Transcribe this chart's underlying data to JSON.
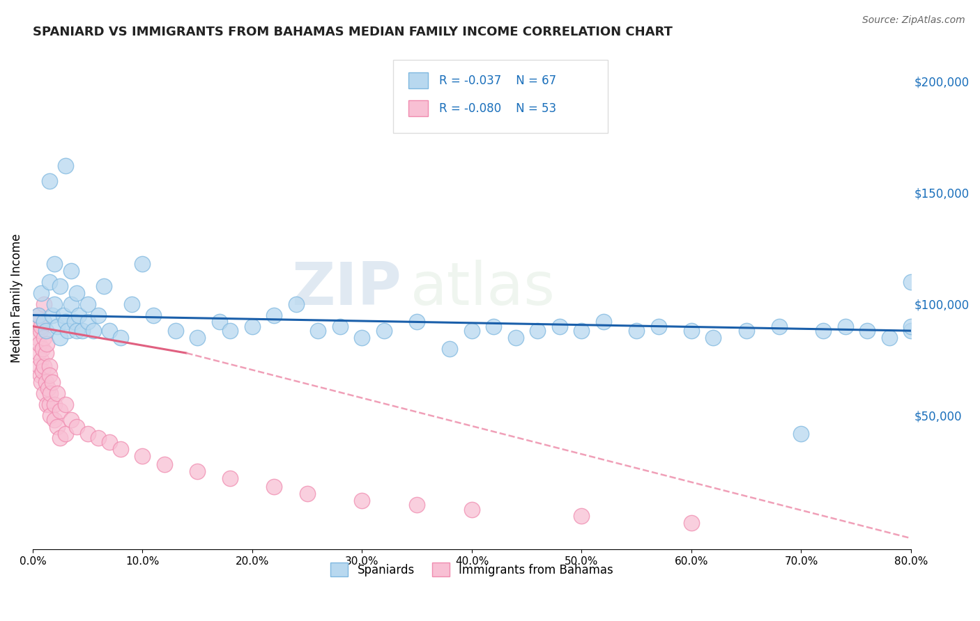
{
  "title": "SPANIARD VS IMMIGRANTS FROM BAHAMAS MEDIAN FAMILY INCOME CORRELATION CHART",
  "source": "Source: ZipAtlas.com",
  "ylabel": "Median Family Income",
  "watermark_zip": "ZIP",
  "watermark_atlas": "atlas",
  "legend_r1": "R = -0.037",
  "legend_n1": "N = 67",
  "legend_r2": "R = -0.080",
  "legend_n2": "N = 53",
  "series1_label": "Spaniards",
  "series2_label": "Immigrants from Bahamas",
  "series1_color": "#7fb8e0",
  "series1_fill": "#b8d8ef",
  "series2_color": "#f08cb0",
  "series2_fill": "#f8c0d4",
  "trend1_color": "#1a5faa",
  "trend2_solid_color": "#e06080",
  "trend2_dash_color": "#f0a0b8",
  "background": "#ffffff",
  "grid_color": "#cccccc",
  "xmin": 0.0,
  "xmax": 0.8,
  "ymin": -10000,
  "ymax": 215000,
  "yticks": [
    0,
    50000,
    100000,
    150000,
    200000
  ],
  "ytick_labels": [
    "",
    "$50,000",
    "$100,000",
    "$150,000",
    "$200,000"
  ],
  "spaniards_x": [
    0.005,
    0.008,
    0.01,
    0.012,
    0.015,
    0.015,
    0.018,
    0.02,
    0.02,
    0.022,
    0.025,
    0.025,
    0.028,
    0.03,
    0.03,
    0.032,
    0.035,
    0.035,
    0.038,
    0.04,
    0.04,
    0.042,
    0.045,
    0.05,
    0.05,
    0.055,
    0.06,
    0.065,
    0.07,
    0.08,
    0.09,
    0.1,
    0.11,
    0.13,
    0.15,
    0.17,
    0.18,
    0.2,
    0.22,
    0.24,
    0.26,
    0.28,
    0.3,
    0.32,
    0.35,
    0.38,
    0.4,
    0.42,
    0.44,
    0.46,
    0.48,
    0.5,
    0.52,
    0.55,
    0.57,
    0.6,
    0.62,
    0.65,
    0.68,
    0.7,
    0.72,
    0.74,
    0.76,
    0.78,
    0.8,
    0.8,
    0.8
  ],
  "spaniards_y": [
    95000,
    105000,
    92000,
    88000,
    110000,
    155000,
    95000,
    100000,
    118000,
    90000,
    108000,
    85000,
    95000,
    92000,
    162000,
    88000,
    100000,
    115000,
    92000,
    88000,
    105000,
    95000,
    88000,
    92000,
    100000,
    88000,
    95000,
    108000,
    88000,
    85000,
    100000,
    118000,
    95000,
    88000,
    85000,
    92000,
    88000,
    90000,
    95000,
    100000,
    88000,
    90000,
    85000,
    88000,
    92000,
    80000,
    88000,
    90000,
    85000,
    88000,
    90000,
    88000,
    92000,
    88000,
    90000,
    88000,
    85000,
    88000,
    90000,
    42000,
    88000,
    90000,
    88000,
    85000,
    88000,
    90000,
    110000
  ],
  "bahamas_x": [
    0.003,
    0.004,
    0.005,
    0.005,
    0.006,
    0.006,
    0.007,
    0.007,
    0.008,
    0.008,
    0.008,
    0.009,
    0.009,
    0.01,
    0.01,
    0.01,
    0.01,
    0.012,
    0.012,
    0.013,
    0.013,
    0.014,
    0.015,
    0.015,
    0.015,
    0.016,
    0.016,
    0.018,
    0.02,
    0.02,
    0.022,
    0.022,
    0.025,
    0.025,
    0.03,
    0.03,
    0.035,
    0.04,
    0.05,
    0.06,
    0.07,
    0.08,
    0.1,
    0.12,
    0.15,
    0.18,
    0.22,
    0.25,
    0.3,
    0.35,
    0.4,
    0.5,
    0.6
  ],
  "bahamas_y": [
    92000,
    85000,
    78000,
    95000,
    82000,
    72000,
    88000,
    68000,
    90000,
    75000,
    65000,
    80000,
    70000,
    85000,
    60000,
    72000,
    100000,
    65000,
    78000,
    55000,
    82000,
    62000,
    72000,
    55000,
    68000,
    60000,
    50000,
    65000,
    55000,
    48000,
    60000,
    45000,
    52000,
    40000,
    55000,
    42000,
    48000,
    45000,
    42000,
    40000,
    38000,
    35000,
    32000,
    28000,
    25000,
    22000,
    18000,
    15000,
    12000,
    10000,
    8000,
    5000,
    2000
  ],
  "trend1_x0": 0.0,
  "trend1_x1": 0.8,
  "trend1_y0": 95000,
  "trend1_y1": 88000,
  "trend2_solid_x0": 0.0,
  "trend2_solid_x1": 0.14,
  "trend2_y0": 90000,
  "trend2_y1": 78000,
  "trend2_dash_x0": 0.14,
  "trend2_dash_x1": 0.8,
  "trend2_dash_y0": 78000,
  "trend2_dash_y1": -5000
}
